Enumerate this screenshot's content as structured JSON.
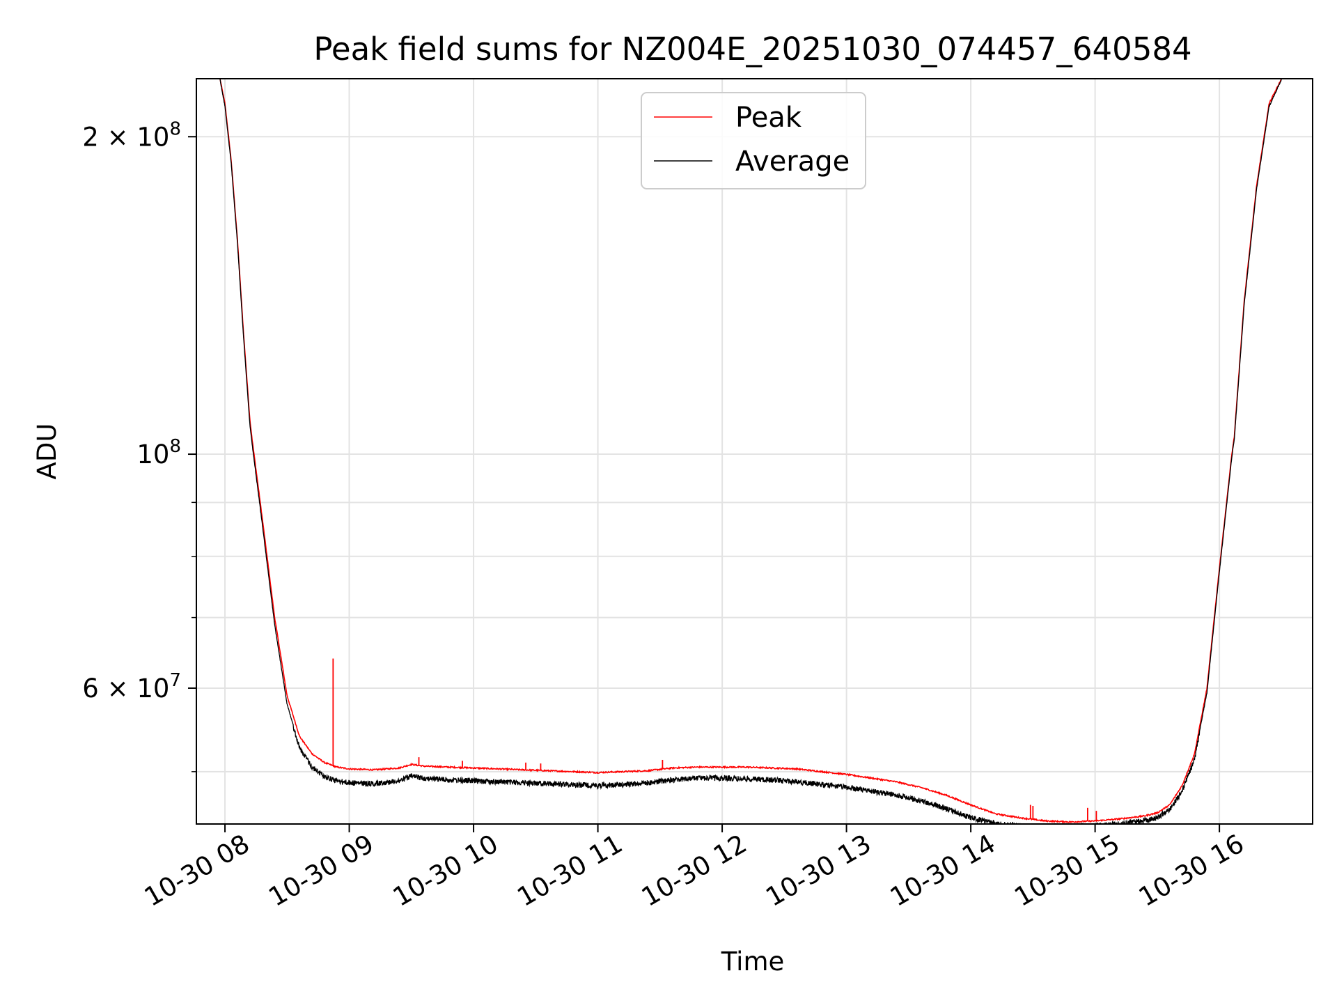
{
  "chart_data": {
    "type": "line",
    "title": "Peak field sums for NZ004E_20251030_074457_640584",
    "xlabel": "Time",
    "ylabel": "ADU",
    "yscale": "log",
    "ylim": [
      44600000,
      227000000
    ],
    "xlim": [
      7.77,
      16.75
    ],
    "grid": true,
    "legend_location": "upper center",
    "x_ticks": [
      {
        "value": 8,
        "label": "10-30 08"
      },
      {
        "value": 9,
        "label": "10-30 09"
      },
      {
        "value": 10,
        "label": "10-30 10"
      },
      {
        "value": 11,
        "label": "10-30 11"
      },
      {
        "value": 12,
        "label": "10-30 12"
      },
      {
        "value": 13,
        "label": "10-30 13"
      },
      {
        "value": 14,
        "label": "10-30 14"
      },
      {
        "value": 15,
        "label": "10-30 15"
      },
      {
        "value": 16,
        "label": "10-30 16"
      }
    ],
    "y_ticks": [
      {
        "value": 200000000,
        "base": "2 × 10",
        "exp": "8"
      },
      {
        "value": 100000000,
        "base": "10",
        "exp": "8"
      },
      {
        "value": 60000000,
        "base": "6 × 10",
        "exp": "7"
      }
    ],
    "y_minor_ticks": [
      90000000,
      80000000,
      70000000,
      50000000
    ],
    "series": [
      {
        "name": "Peak",
        "color": "#ff0000",
        "x": [
          7.96,
          8.0,
          8.05,
          8.1,
          8.15,
          8.2,
          8.22,
          8.3,
          8.4,
          8.5,
          8.6,
          8.7,
          8.8,
          8.9,
          9.0,
          9.2,
          9.4,
          9.5,
          9.6,
          9.8,
          10.0,
          10.2,
          10.4,
          10.6,
          10.8,
          11.0,
          11.2,
          11.4,
          11.6,
          11.8,
          12.0,
          12.2,
          12.4,
          12.6,
          12.8,
          13.0,
          13.2,
          13.4,
          13.6,
          13.8,
          14.0,
          14.2,
          14.4,
          14.6,
          14.8,
          15.0,
          15.2,
          15.4,
          15.5,
          15.6,
          15.7,
          15.8,
          15.9,
          16.0,
          16.1,
          16.12,
          16.2,
          16.3,
          16.4,
          16.5
        ],
        "y": [
          227000000,
          215000000,
          190000000,
          160000000,
          130000000,
          108000000,
          103000000,
          87000000,
          70000000,
          59000000,
          54000000,
          52000000,
          51000000,
          50500000,
          50300000,
          50200000,
          50400000,
          50800000,
          50600000,
          50500000,
          50400000,
          50300000,
          50200000,
          50100000,
          50000000,
          49900000,
          50000000,
          50100000,
          50400000,
          50500000,
          50500000,
          50500000,
          50400000,
          50300000,
          50000000,
          49700000,
          49300000,
          48900000,
          48300000,
          47500000,
          46500000,
          45600000,
          45200000,
          44900000,
          44800000,
          44900000,
          45100000,
          45400000,
          45700000,
          46500000,
          48500000,
          52000000,
          60000000,
          78000000,
          100000000,
          104000000,
          140000000,
          180000000,
          215000000,
          227000000
        ],
        "spikes": [
          {
            "x": 8.87,
            "y": 64000000
          },
          {
            "x": 9.56,
            "y": 51600000
          },
          {
            "x": 9.91,
            "y": 51200000
          },
          {
            "x": 10.42,
            "y": 51000000
          },
          {
            "x": 10.54,
            "y": 50900000
          },
          {
            "x": 11.52,
            "y": 51300000
          },
          {
            "x": 14.48,
            "y": 46500000
          },
          {
            "x": 14.5,
            "y": 46400000
          },
          {
            "x": 14.94,
            "y": 46200000
          },
          {
            "x": 15.01,
            "y": 45900000
          }
        ]
      },
      {
        "name": "Average",
        "color": "#000000",
        "x": [
          7.96,
          8.0,
          8.05,
          8.1,
          8.15,
          8.2,
          8.22,
          8.3,
          8.4,
          8.5,
          8.6,
          8.7,
          8.8,
          8.9,
          9.0,
          9.2,
          9.4,
          9.5,
          9.6,
          9.8,
          10.0,
          10.2,
          10.4,
          10.6,
          10.8,
          11.0,
          11.2,
          11.4,
          11.6,
          11.8,
          12.0,
          12.2,
          12.4,
          12.6,
          12.8,
          13.0,
          13.2,
          13.4,
          13.6,
          13.8,
          14.0,
          14.2,
          14.4,
          14.6,
          14.8,
          15.0,
          15.2,
          15.4,
          15.5,
          15.6,
          15.7,
          15.8,
          15.9,
          16.0,
          16.1,
          16.12,
          16.2,
          16.3,
          16.4,
          16.5
        ],
        "y": [
          227000000,
          214000000,
          189000000,
          159000000,
          129000000,
          107000000,
          102000000,
          86000000,
          69000000,
          58000000,
          53000000,
          50800000,
          49800000,
          49300000,
          49100000,
          49000000,
          49300000,
          49800000,
          49600000,
          49400000,
          49300000,
          49200000,
          49100000,
          49000000,
          48900000,
          48800000,
          48900000,
          49100000,
          49400000,
          49600000,
          49600000,
          49500000,
          49400000,
          49200000,
          48900000,
          48600000,
          48200000,
          47800000,
          47200000,
          46400000,
          45500000,
          44900000,
          44700000,
          44600000,
          44600000,
          44700000,
          44900000,
          45200000,
          45500000,
          46300000,
          48200000,
          51700000,
          59500000,
          77500000,
          99500000,
          103500000,
          139000000,
          179000000,
          214000000,
          227000000
        ],
        "noise_frac": 0.012
      }
    ]
  }
}
